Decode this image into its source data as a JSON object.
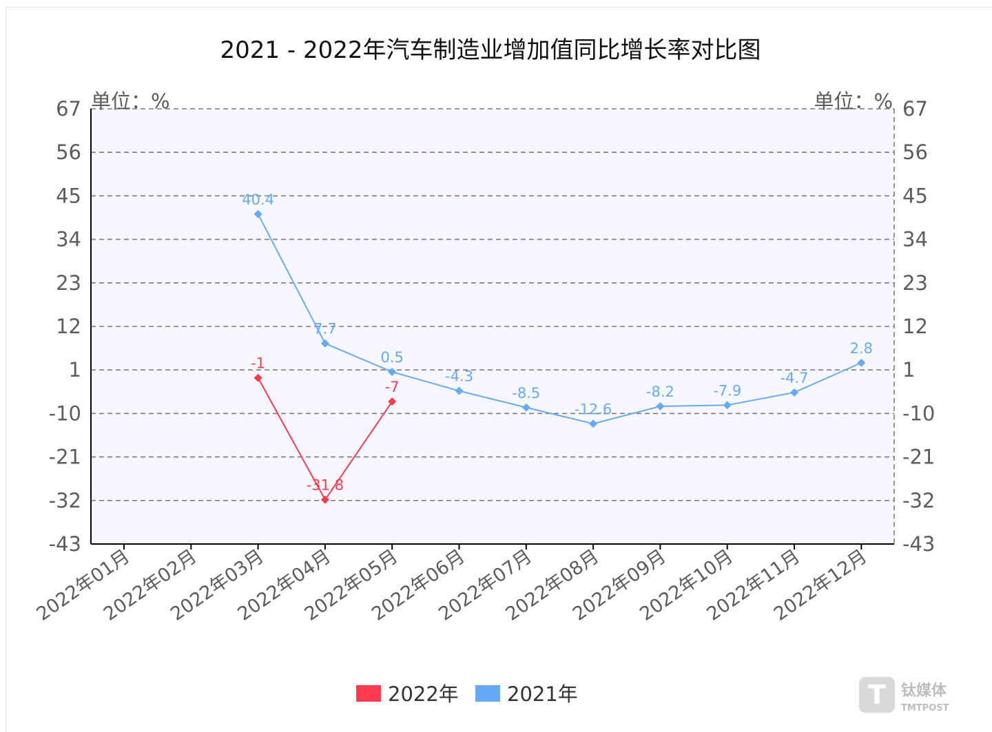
{
  "chart_data": {
    "type": "line",
    "title": "2021 - 2022年汽车制造业增加值同比增长率对比图",
    "y_unit_left": "单位：%",
    "y_unit_right": "单位：%",
    "ylim": [
      -43,
      67
    ],
    "yticks": [
      67,
      56,
      45,
      34,
      23,
      12,
      1,
      -10,
      -21,
      -32,
      -43
    ],
    "categories": [
      "2022年01月",
      "2022年02月",
      "2022年03月",
      "2022年04月",
      "2022年05月",
      "2022年06月",
      "2022年07月",
      "2022年08月",
      "2022年09月",
      "2022年10月",
      "2022年11月",
      "2022年12月"
    ],
    "series": [
      {
        "name": "2022年",
        "color": "#ff3a4f",
        "values": [
          null,
          null,
          -1,
          -31.8,
          -7,
          null,
          null,
          null,
          null,
          null,
          null,
          null
        ]
      },
      {
        "name": "2021年",
        "color": "#66aaf5",
        "values": [
          null,
          null,
          40.4,
          7.7,
          0.5,
          -4.3,
          -8.5,
          -12.6,
          -8.2,
          -7.9,
          -4.7,
          2.8
        ]
      }
    ],
    "grid": true,
    "legend_position": "bottom-center"
  },
  "watermark": {
    "brand": "钛媒体",
    "sub": "TMTPOST"
  }
}
